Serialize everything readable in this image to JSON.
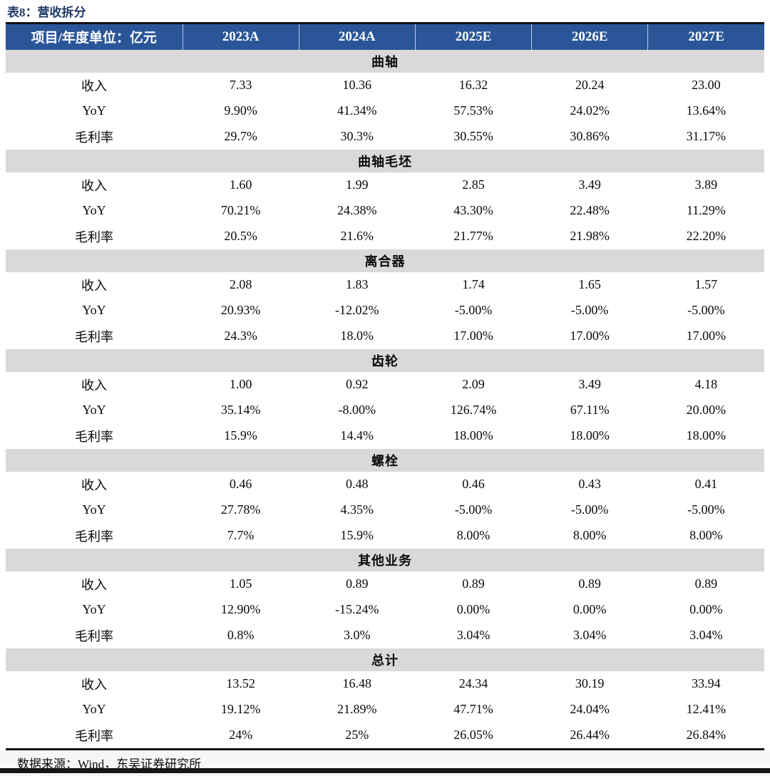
{
  "title": "表8：营收拆分",
  "table": {
    "header": [
      "项目/年度单位：亿元",
      "2023A",
      "2024A",
      "2025E",
      "2026E",
      "2027E"
    ],
    "row_labels": [
      "收入",
      "YoY",
      "毛利率"
    ],
    "sections": [
      {
        "name": "曲轴",
        "rows": [
          [
            "7.33",
            "10.36",
            "16.32",
            "20.24",
            "23.00"
          ],
          [
            "9.90%",
            "41.34%",
            "57.53%",
            "24.02%",
            "13.64%"
          ],
          [
            "29.7%",
            "30.3%",
            "30.55%",
            "30.86%",
            "31.17%"
          ]
        ]
      },
      {
        "name": "曲轴毛坯",
        "rows": [
          [
            "1.60",
            "1.99",
            "2.85",
            "3.49",
            "3.89"
          ],
          [
            "70.21%",
            "24.38%",
            "43.30%",
            "22.48%",
            "11.29%"
          ],
          [
            "20.5%",
            "21.6%",
            "21.77%",
            "21.98%",
            "22.20%"
          ]
        ]
      },
      {
        "name": "离合器",
        "rows": [
          [
            "2.08",
            "1.83",
            "1.74",
            "1.65",
            "1.57"
          ],
          [
            "20.93%",
            "-12.02%",
            "-5.00%",
            "-5.00%",
            "-5.00%"
          ],
          [
            "24.3%",
            "18.0%",
            "17.00%",
            "17.00%",
            "17.00%"
          ]
        ]
      },
      {
        "name": "齿轮",
        "rows": [
          [
            "1.00",
            "0.92",
            "2.09",
            "3.49",
            "4.18"
          ],
          [
            "35.14%",
            "-8.00%",
            "126.74%",
            "67.11%",
            "20.00%"
          ],
          [
            "15.9%",
            "14.4%",
            "18.00%",
            "18.00%",
            "18.00%"
          ]
        ]
      },
      {
        "name": "螺栓",
        "rows": [
          [
            "0.46",
            "0.48",
            "0.46",
            "0.43",
            "0.41"
          ],
          [
            "27.78%",
            "4.35%",
            "-5.00%",
            "-5.00%",
            "-5.00%"
          ],
          [
            "7.7%",
            "15.9%",
            "8.00%",
            "8.00%",
            "8.00%"
          ]
        ]
      },
      {
        "name": "其他业务",
        "rows": [
          [
            "1.05",
            "0.89",
            "0.89",
            "0.89",
            "0.89"
          ],
          [
            "12.90%",
            "-15.24%",
            "0.00%",
            "0.00%",
            "0.00%"
          ],
          [
            "0.8%",
            "3.0%",
            "3.04%",
            "3.04%",
            "3.04%"
          ]
        ]
      },
      {
        "name": "总计",
        "rows": [
          [
            "13.52",
            "16.48",
            "24.34",
            "30.19",
            "33.94"
          ],
          [
            "19.12%",
            "21.89%",
            "47.71%",
            "24.04%",
            "12.41%"
          ],
          [
            "24%",
            "25%",
            "26.05%",
            "26.44%",
            "26.84%"
          ]
        ]
      }
    ]
  },
  "footer": {
    "source": "数据来源：Wind，东吴证券研究所"
  },
  "colors": {
    "header_bg": "#2A5699",
    "band_bg": "#D9D9D9",
    "title_color": "#1E3A68",
    "rule_color": "#111111",
    "footer_bg": "#F6F6F5",
    "bottom_bar": "#161616"
  }
}
